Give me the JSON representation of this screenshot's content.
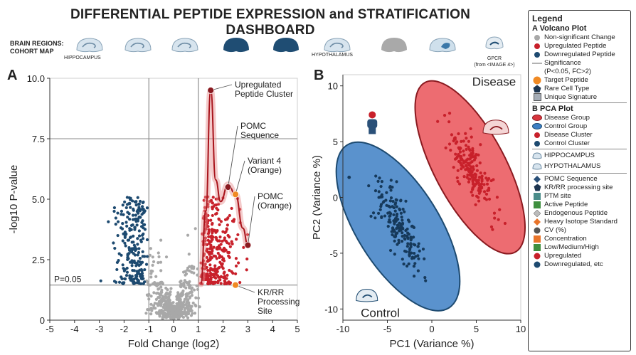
{
  "title": "DIFFERENTIAL PEPTIDE EXPRESSION and STRATIFICATION DASHBOARD",
  "brain_regions": {
    "label_line1": "BRAIN REGIONS:",
    "label_line2": "COHORT MAP",
    "hippocampus": "HIPPOCAMPUS",
    "hypothalamus": "HYPOTHALAMUS",
    "gpcr": "GPCR",
    "gpcr_note": "(from <IMAGE 4>)"
  },
  "colors": {
    "nonsig": "#a8a8a8",
    "up": "#c8202a",
    "down": "#1d4a70",
    "target": "#f08a24",
    "disease_fill": "#e8474e",
    "control_fill": "#3d7fc4"
  },
  "chart_data": [
    {
      "type": "scatter",
      "panel": "A",
      "subtype": "volcano",
      "xlabel": "Fold Change (log2)",
      "ylabel": "-log10 P-value",
      "xlim": [
        -5,
        5
      ],
      "ylim": [
        0,
        10
      ],
      "xticks": [
        "-5",
        "-4",
        "-3",
        "-2",
        "-1",
        "0",
        "1",
        "2",
        "3",
        "4",
        "5"
      ],
      "yticks": [
        "0",
        "2.5",
        "5.0",
        "7.5",
        "10.0"
      ],
      "threshold_label": "P=0.05",
      "threshold_y": 1.45,
      "fc_thresholds": [
        -1,
        1
      ],
      "reference_line_y": 7.5,
      "peak_curve": [
        [
          1.1,
          1.5
        ],
        [
          1.3,
          4.5
        ],
        [
          1.5,
          9.5
        ],
        [
          1.7,
          5.8
        ],
        [
          1.9,
          4.9
        ],
        [
          2.2,
          5.6
        ],
        [
          2.5,
          5.2
        ],
        [
          2.8,
          3.8
        ],
        [
          3.0,
          3.1
        ]
      ],
      "annotations": [
        {
          "text_line1": "Upregulated",
          "text_line2": "Peptide Cluster",
          "x": 1.5,
          "y": 9.5,
          "color": "up"
        },
        {
          "text_line1": "POMC",
          "text_line2": "Sequence",
          "x": 2.2,
          "y": 5.5,
          "color": "up"
        },
        {
          "text_line1": "Variant 4",
          "text_line2": "(Orange)",
          "x": 2.5,
          "y": 5.2,
          "color": "target"
        },
        {
          "text_line1": "POMC",
          "text_line2": "(Orange)",
          "x": 3.0,
          "y": 3.1,
          "color": "up"
        },
        {
          "text_line1": "KR/RR",
          "text_line2": "Processing",
          "text_line3": "Site",
          "x": 2.5,
          "y": 1.45,
          "color": "target"
        }
      ]
    },
    {
      "type": "scatter",
      "panel": "B",
      "subtype": "pca",
      "xlabel": "PC1 (Variance %)",
      "ylabel": "PC2 (Variance %)",
      "xlim": [
        -10,
        10
      ],
      "ylim": [
        -11,
        11
      ],
      "xticks": [
        "-10",
        "-5",
        "0",
        "5",
        "10"
      ],
      "yticks": [
        "-10",
        "-5",
        "0",
        "5",
        "10"
      ],
      "groups": [
        {
          "name": "Disease",
          "center": [
            4.3,
            2.7
          ],
          "spread": [
            2.2,
            2.0
          ]
        },
        {
          "name": "Control",
          "center": [
            -3.8,
            -2.6
          ],
          "spread": [
            2.2,
            2.0
          ]
        }
      ]
    }
  ],
  "legend": {
    "title": "Legend",
    "section_a": "A Volcano Plot",
    "a_items": [
      "Non-significant Change",
      "Upregulated Peptide",
      "Downregulated Peptide",
      "Significance",
      "(P<0.05, FC>2)",
      "Target Peptide",
      "Rare Cell Type",
      "Unique Signature"
    ],
    "section_b": "B PCA Plot",
    "b_items": [
      "Disease Group",
      "Control Group",
      "Disease Cluster",
      "Control Cluster"
    ],
    "region_items": [
      "HIPPOCAMPUS",
      "HYPOTHALAMUS"
    ],
    "extra_items": [
      "POMC Sequence",
      "KR/RR processing site",
      "PTM site",
      "Active Peptide",
      "Endogenous Peptide",
      "Heavy Isotope Standard",
      "CV (%)",
      "Concentration",
      "Low/Medium/High",
      "Upregulated",
      "Downregulated, etc"
    ]
  }
}
